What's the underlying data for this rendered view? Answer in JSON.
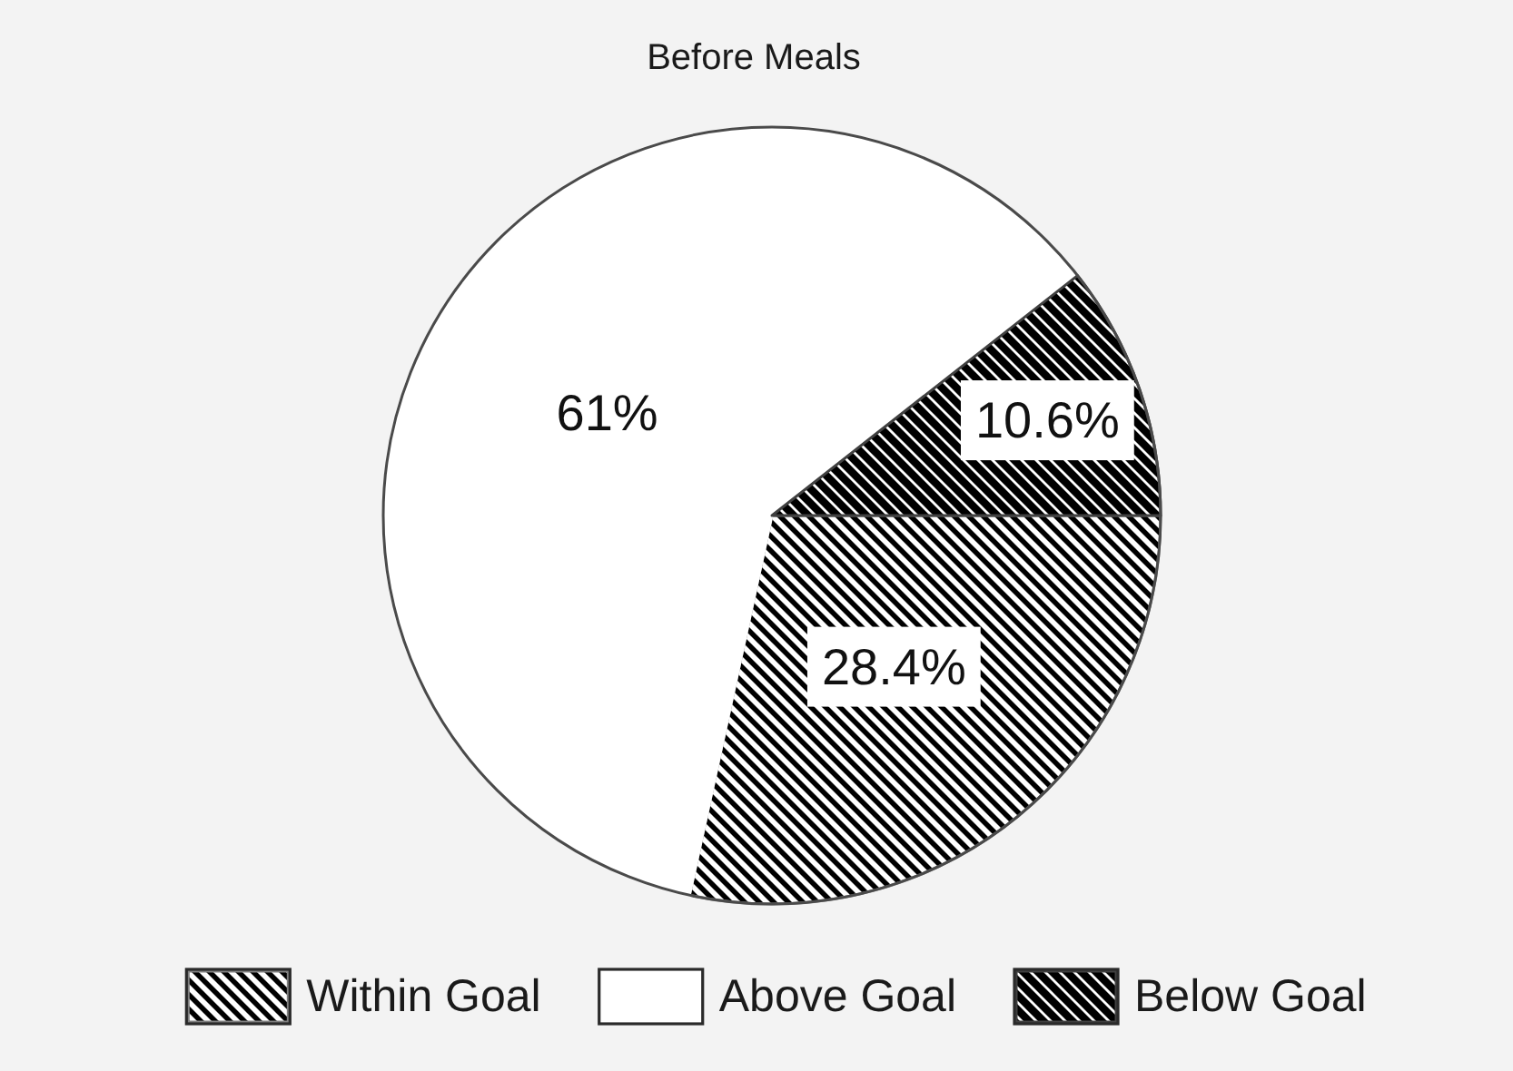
{
  "chart_data": {
    "type": "pie",
    "title": "Before Meals",
    "categories": [
      "Within Goal",
      "Above Goal",
      "Below Goal"
    ],
    "values": [
      28.4,
      61,
      10.6
    ],
    "colors": [
      "#808080",
      "#ffffff",
      "#404040"
    ],
    "value_labels": [
      "28.4%",
      "61%",
      "10.6%"
    ],
    "legend": "bottom"
  }
}
